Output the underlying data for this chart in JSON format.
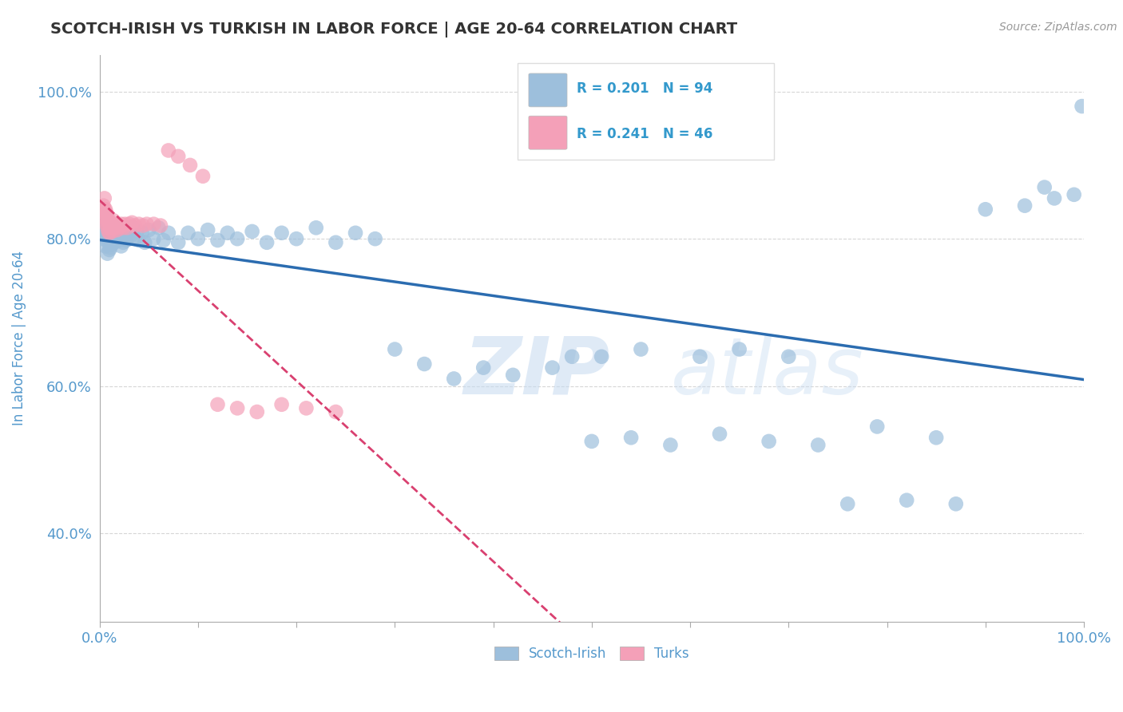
{
  "title": "SCOTCH-IRISH VS TURKISH IN LABOR FORCE | AGE 20-64 CORRELATION CHART",
  "source_text": "Source: ZipAtlas.com",
  "ylabel": "In Labor Force | Age 20-64",
  "xlim": [
    0.0,
    1.0
  ],
  "ylim": [
    0.28,
    1.05
  ],
  "blue_R": 0.201,
  "blue_N": 94,
  "pink_R": 0.241,
  "pink_N": 46,
  "legend_label_blue": "Scotch-Irish",
  "legend_label_pink": "Turks",
  "watermark_zip": "ZIP",
  "watermark_atlas": "atlas",
  "background_color": "#ffffff",
  "blue_color": "#9dbfdc",
  "blue_line_color": "#2b6cb0",
  "pink_color": "#f4a0b8",
  "pink_line_color": "#d94070",
  "grid_color": "#cccccc",
  "title_color": "#333333",
  "axis_label_color": "#5599cc",
  "tick_label_color": "#5599cc",
  "legend_R_color": "#3399cc",
  "blue_x": [
    0.003,
    0.004,
    0.005,
    0.005,
    0.006,
    0.006,
    0.007,
    0.007,
    0.008,
    0.008,
    0.009,
    0.009,
    0.01,
    0.01,
    0.01,
    0.011,
    0.011,
    0.012,
    0.012,
    0.013,
    0.013,
    0.014,
    0.015,
    0.015,
    0.016,
    0.017,
    0.018,
    0.019,
    0.02,
    0.021,
    0.022,
    0.023,
    0.024,
    0.025,
    0.026,
    0.027,
    0.028,
    0.03,
    0.032,
    0.034,
    0.036,
    0.038,
    0.04,
    0.043,
    0.046,
    0.05,
    0.055,
    0.06,
    0.065,
    0.07,
    0.08,
    0.09,
    0.1,
    0.11,
    0.12,
    0.13,
    0.14,
    0.155,
    0.17,
    0.185,
    0.2,
    0.22,
    0.24,
    0.26,
    0.28,
    0.3,
    0.33,
    0.36,
    0.39,
    0.42,
    0.46,
    0.5,
    0.54,
    0.58,
    0.63,
    0.68,
    0.73,
    0.79,
    0.85,
    0.9,
    0.94,
    0.97,
    0.99,
    0.998,
    0.48,
    0.51,
    0.55,
    0.61,
    0.65,
    0.7,
    0.76,
    0.82,
    0.87,
    0.96
  ],
  "blue_y": [
    0.8,
    0.82,
    0.81,
    0.83,
    0.79,
    0.815,
    0.805,
    0.825,
    0.78,
    0.808,
    0.795,
    0.812,
    0.785,
    0.798,
    0.818,
    0.788,
    0.808,
    0.792,
    0.815,
    0.8,
    0.82,
    0.81,
    0.795,
    0.812,
    0.808,
    0.802,
    0.815,
    0.805,
    0.798,
    0.812,
    0.79,
    0.808,
    0.795,
    0.8,
    0.812,
    0.798,
    0.808,
    0.81,
    0.805,
    0.815,
    0.8,
    0.81,
    0.798,
    0.808,
    0.795,
    0.812,
    0.8,
    0.815,
    0.798,
    0.808,
    0.795,
    0.808,
    0.8,
    0.812,
    0.798,
    0.808,
    0.8,
    0.81,
    0.795,
    0.808,
    0.8,
    0.815,
    0.795,
    0.808,
    0.8,
    0.65,
    0.63,
    0.61,
    0.625,
    0.615,
    0.625,
    0.525,
    0.53,
    0.52,
    0.535,
    0.525,
    0.52,
    0.545,
    0.53,
    0.84,
    0.845,
    0.855,
    0.86,
    0.98,
    0.64,
    0.64,
    0.65,
    0.64,
    0.65,
    0.64,
    0.44,
    0.445,
    0.44,
    0.87
  ],
  "pink_x": [
    0.003,
    0.004,
    0.005,
    0.005,
    0.006,
    0.006,
    0.007,
    0.007,
    0.008,
    0.008,
    0.009,
    0.009,
    0.01,
    0.01,
    0.011,
    0.012,
    0.013,
    0.014,
    0.015,
    0.016,
    0.017,
    0.018,
    0.019,
    0.02,
    0.022,
    0.024,
    0.026,
    0.028,
    0.03,
    0.033,
    0.036,
    0.04,
    0.044,
    0.048,
    0.055,
    0.062,
    0.07,
    0.08,
    0.092,
    0.105,
    0.12,
    0.14,
    0.16,
    0.185,
    0.21,
    0.24
  ],
  "pink_y": [
    0.83,
    0.845,
    0.84,
    0.855,
    0.825,
    0.84,
    0.82,
    0.835,
    0.815,
    0.83,
    0.81,
    0.825,
    0.808,
    0.822,
    0.815,
    0.82,
    0.81,
    0.825,
    0.815,
    0.818,
    0.82,
    0.812,
    0.818,
    0.815,
    0.82,
    0.815,
    0.82,
    0.815,
    0.82,
    0.822,
    0.818,
    0.82,
    0.818,
    0.82,
    0.82,
    0.818,
    0.92,
    0.912,
    0.9,
    0.885,
    0.575,
    0.57,
    0.565,
    0.575,
    0.57,
    0.565
  ]
}
